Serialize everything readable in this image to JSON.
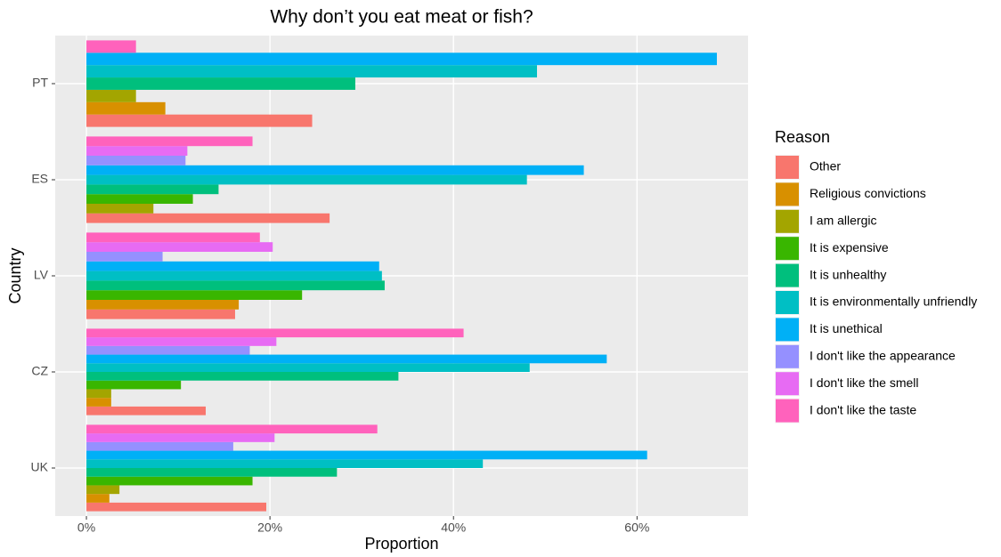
{
  "chart_data": {
    "type": "grouped-horizontal-bar",
    "title": "Why don’t you eat meat or fish?",
    "x_label": "Proportion",
    "y_label": "Country",
    "legend_title": "Reason",
    "categories": [
      "PT",
      "ES",
      "LV",
      "CZ",
      "UK"
    ],
    "xlim": [
      -3.4,
      72.1
    ],
    "xticks": [
      {
        "value": 0,
        "label": "0%"
      },
      {
        "value": 20,
        "label": "20%"
      },
      {
        "value": 40,
        "label": "40%"
      },
      {
        "value": 60,
        "label": "60%"
      }
    ],
    "grid": true,
    "legend_position": "right",
    "series": [
      {
        "name": "Other",
        "color": "#F8766D",
        "values": [
          24.6,
          26.5,
          16.2,
          13.0,
          19.6
        ]
      },
      {
        "name": "Religious convictions",
        "color": "#D89000",
        "values": [
          8.6,
          null,
          16.6,
          2.7,
          2.5
        ]
      },
      {
        "name": "I am allergic",
        "color": "#A3A500",
        "values": [
          5.4,
          7.3,
          null,
          2.7,
          3.6
        ]
      },
      {
        "name": "It is expensive",
        "color": "#39B600",
        "values": [
          null,
          11.6,
          23.5,
          10.3,
          18.1
        ]
      },
      {
        "name": "It is unhealthy",
        "color": "#00BF7D",
        "values": [
          29.3,
          14.4,
          32.5,
          34.0,
          27.3
        ]
      },
      {
        "name": "It is environmentally unfriendly",
        "color": "#00BFC4",
        "values": [
          49.1,
          48.0,
          32.2,
          48.3,
          43.2
        ]
      },
      {
        "name": "It is unethical",
        "color": "#00B0F6",
        "values": [
          68.7,
          54.2,
          31.9,
          56.7,
          61.1
        ]
      },
      {
        "name": "I don't like the appearance",
        "color": "#9590FF",
        "values": [
          null,
          10.8,
          8.3,
          17.8,
          16.0
        ]
      },
      {
        "name": "I don't like the smell",
        "color": "#E76BF3",
        "values": [
          null,
          11.0,
          20.3,
          20.7,
          20.5
        ]
      },
      {
        "name": "I don't like the taste",
        "color": "#FF62BC",
        "values": [
          5.4,
          18.1,
          18.9,
          41.1,
          31.7
        ]
      }
    ]
  }
}
